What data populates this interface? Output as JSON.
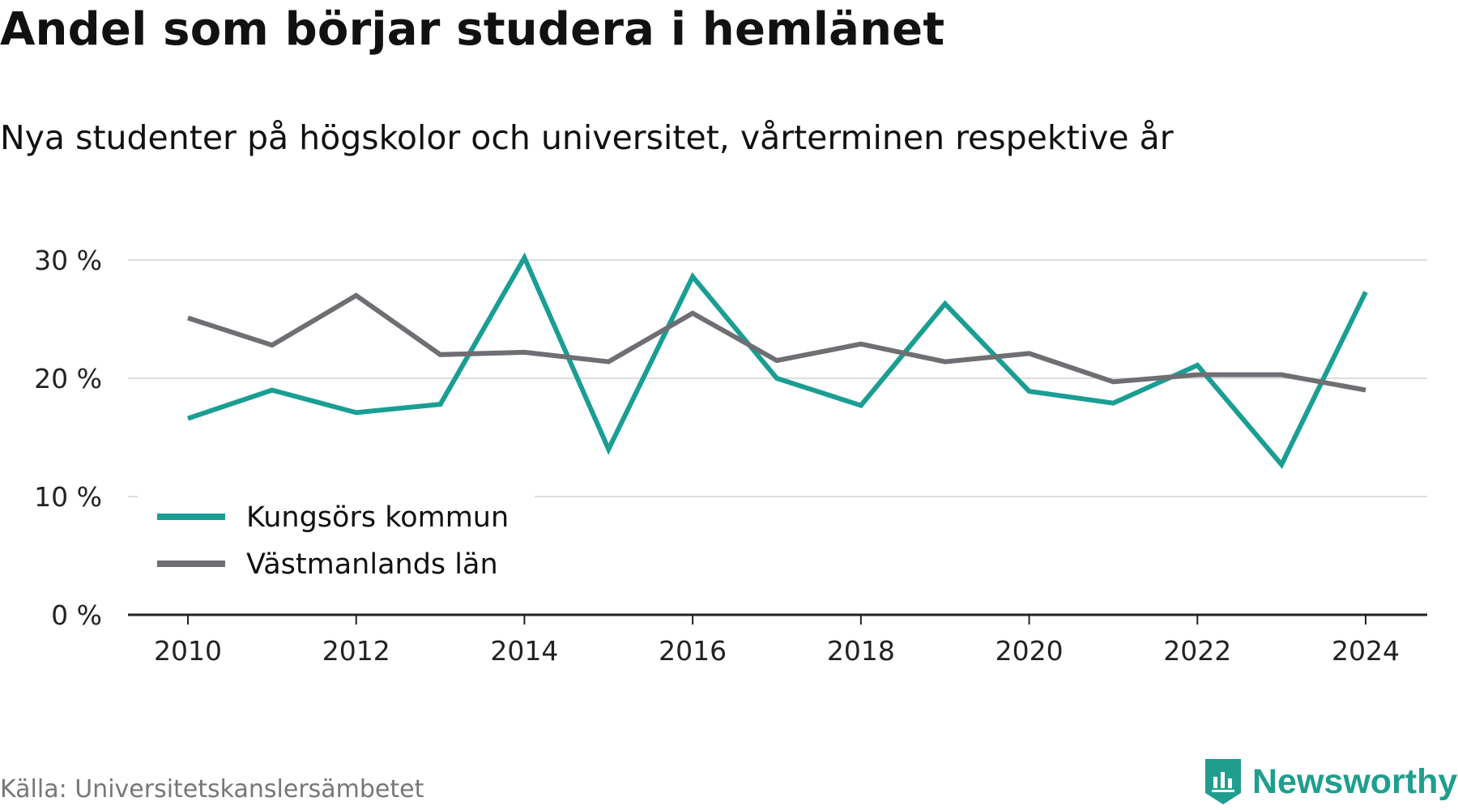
{
  "chart_data": {
    "type": "line",
    "title": "Andel som börjar studera i hemlänet",
    "subtitle": "Nya studenter på högskolor och universitet, vårterminen respektive år",
    "x": [
      2010,
      2011,
      2012,
      2013,
      2014,
      2015,
      2016,
      2017,
      2018,
      2019,
      2020,
      2021,
      2022,
      2023,
      2024
    ],
    "x_tick_labels": [
      "2010",
      "2012",
      "2014",
      "2016",
      "2018",
      "2020",
      "2022",
      "2024"
    ],
    "y_tick_labels": [
      "0 %",
      "10 %",
      "20 %",
      "30 %"
    ],
    "ylim": [
      0,
      30
    ],
    "grid": true,
    "legend_position": "bottom-left",
    "series": [
      {
        "name": "Kungsörs kommun",
        "color": "#1a9e94",
        "values": [
          16.6,
          19.0,
          17.1,
          17.8,
          30.2,
          14.0,
          28.6,
          20.0,
          17.7,
          26.3,
          18.9,
          17.9,
          21.1,
          12.7,
          27.3
        ]
      },
      {
        "name": "Västmanlands län",
        "color": "#6e6e73",
        "values": [
          25.1,
          22.8,
          27.0,
          22.0,
          22.2,
          21.4,
          25.5,
          21.5,
          22.9,
          21.4,
          22.1,
          19.7,
          20.3,
          20.3,
          19.0
        ]
      }
    ]
  },
  "footer": {
    "source": "Källa: Universitetskanslersämbetet",
    "brand": "Newsworthy"
  },
  "colors": {
    "accent": "#1a9e94",
    "secondary": "#6e6e73",
    "grid": "#dddddd",
    "brand": "#1f9e8e"
  }
}
